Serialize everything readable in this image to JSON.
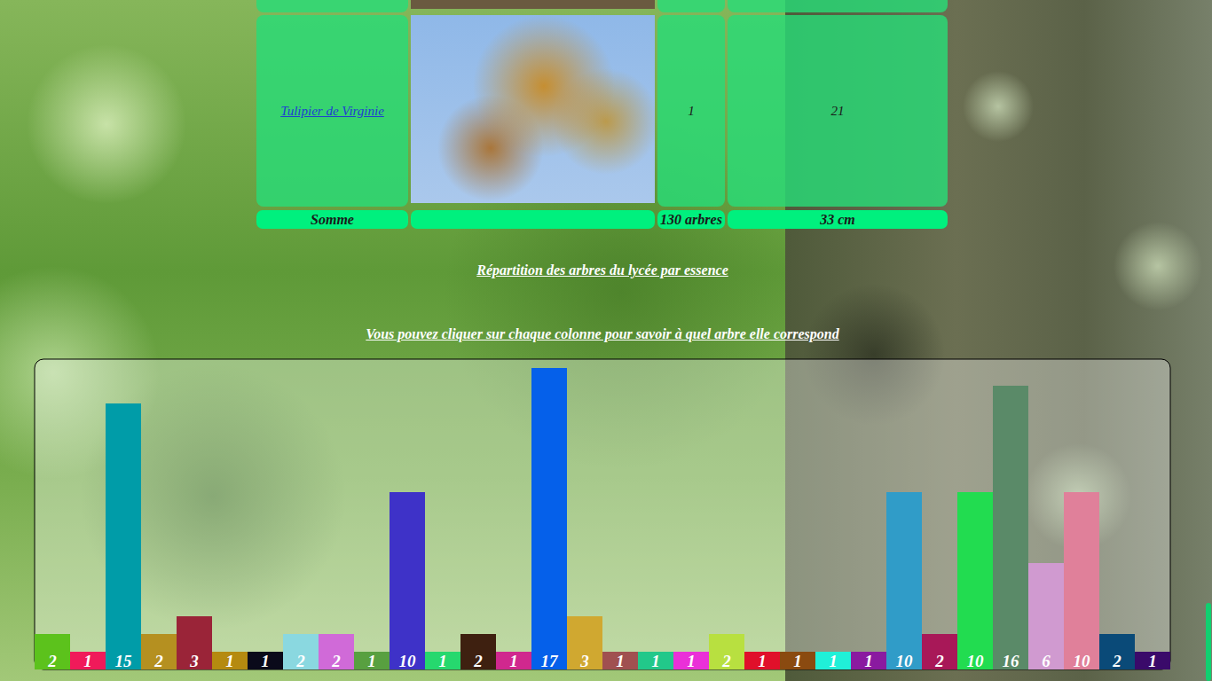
{
  "table": {
    "rows": [
      [
        "Tulipier de Virginie",
        "1",
        "21"
      ]
    ],
    "footer": [
      "Somme",
      "130 arbres",
      "33 cm"
    ]
  },
  "headings": [
    "Répartition des arbres du lycée par essence",
    "Vous pouvez cliquer sur chaque colonne pour savoir à quel arbre elle correspond"
  ],
  "chart_data": {
    "type": "bar",
    "categories": [
      null,
      null,
      null,
      null,
      null,
      null,
      null,
      null,
      null,
      null,
      null,
      null,
      null,
      null,
      null,
      null,
      null,
      null,
      null,
      null,
      null,
      null,
      null,
      null,
      null,
      null,
      null,
      null,
      null,
      null,
      null,
      null
    ],
    "values": [
      2,
      1,
      15,
      2,
      3,
      1,
      1,
      2,
      2,
      1,
      10,
      1,
      2,
      1,
      17,
      3,
      1,
      1,
      1,
      2,
      1,
      1,
      1,
      1,
      10,
      2,
      10,
      16,
      6,
      10,
      2,
      1
    ],
    "colors": [
      "#5cc21c",
      "#f01a5a",
      "#009ca8",
      "#b59020",
      "#9a2438",
      "#b58a10",
      "#0a0a1a",
      "#8ad8e0",
      "#d06ad8",
      "#58a040",
      "#3e32c8",
      "#26d86e",
      "#3e2010",
      "#d0288e",
      "#0560ea",
      "#d0a830",
      "#a05050",
      "#22c88a",
      "#ea30d8",
      "#b8e040",
      "#e0102a",
      "#8a4a10",
      "#20f0d8",
      "#8a1aa0",
      "#309cc8",
      "#a81858",
      "#22dc50",
      "#5a8a68",
      "#d09ad0",
      "#e0809a",
      "#0a4a78",
      "#3a0a6a"
    ],
    "ylim": [
      0,
      17.5
    ],
    "data_labels": true,
    "tick_labels": false
  }
}
